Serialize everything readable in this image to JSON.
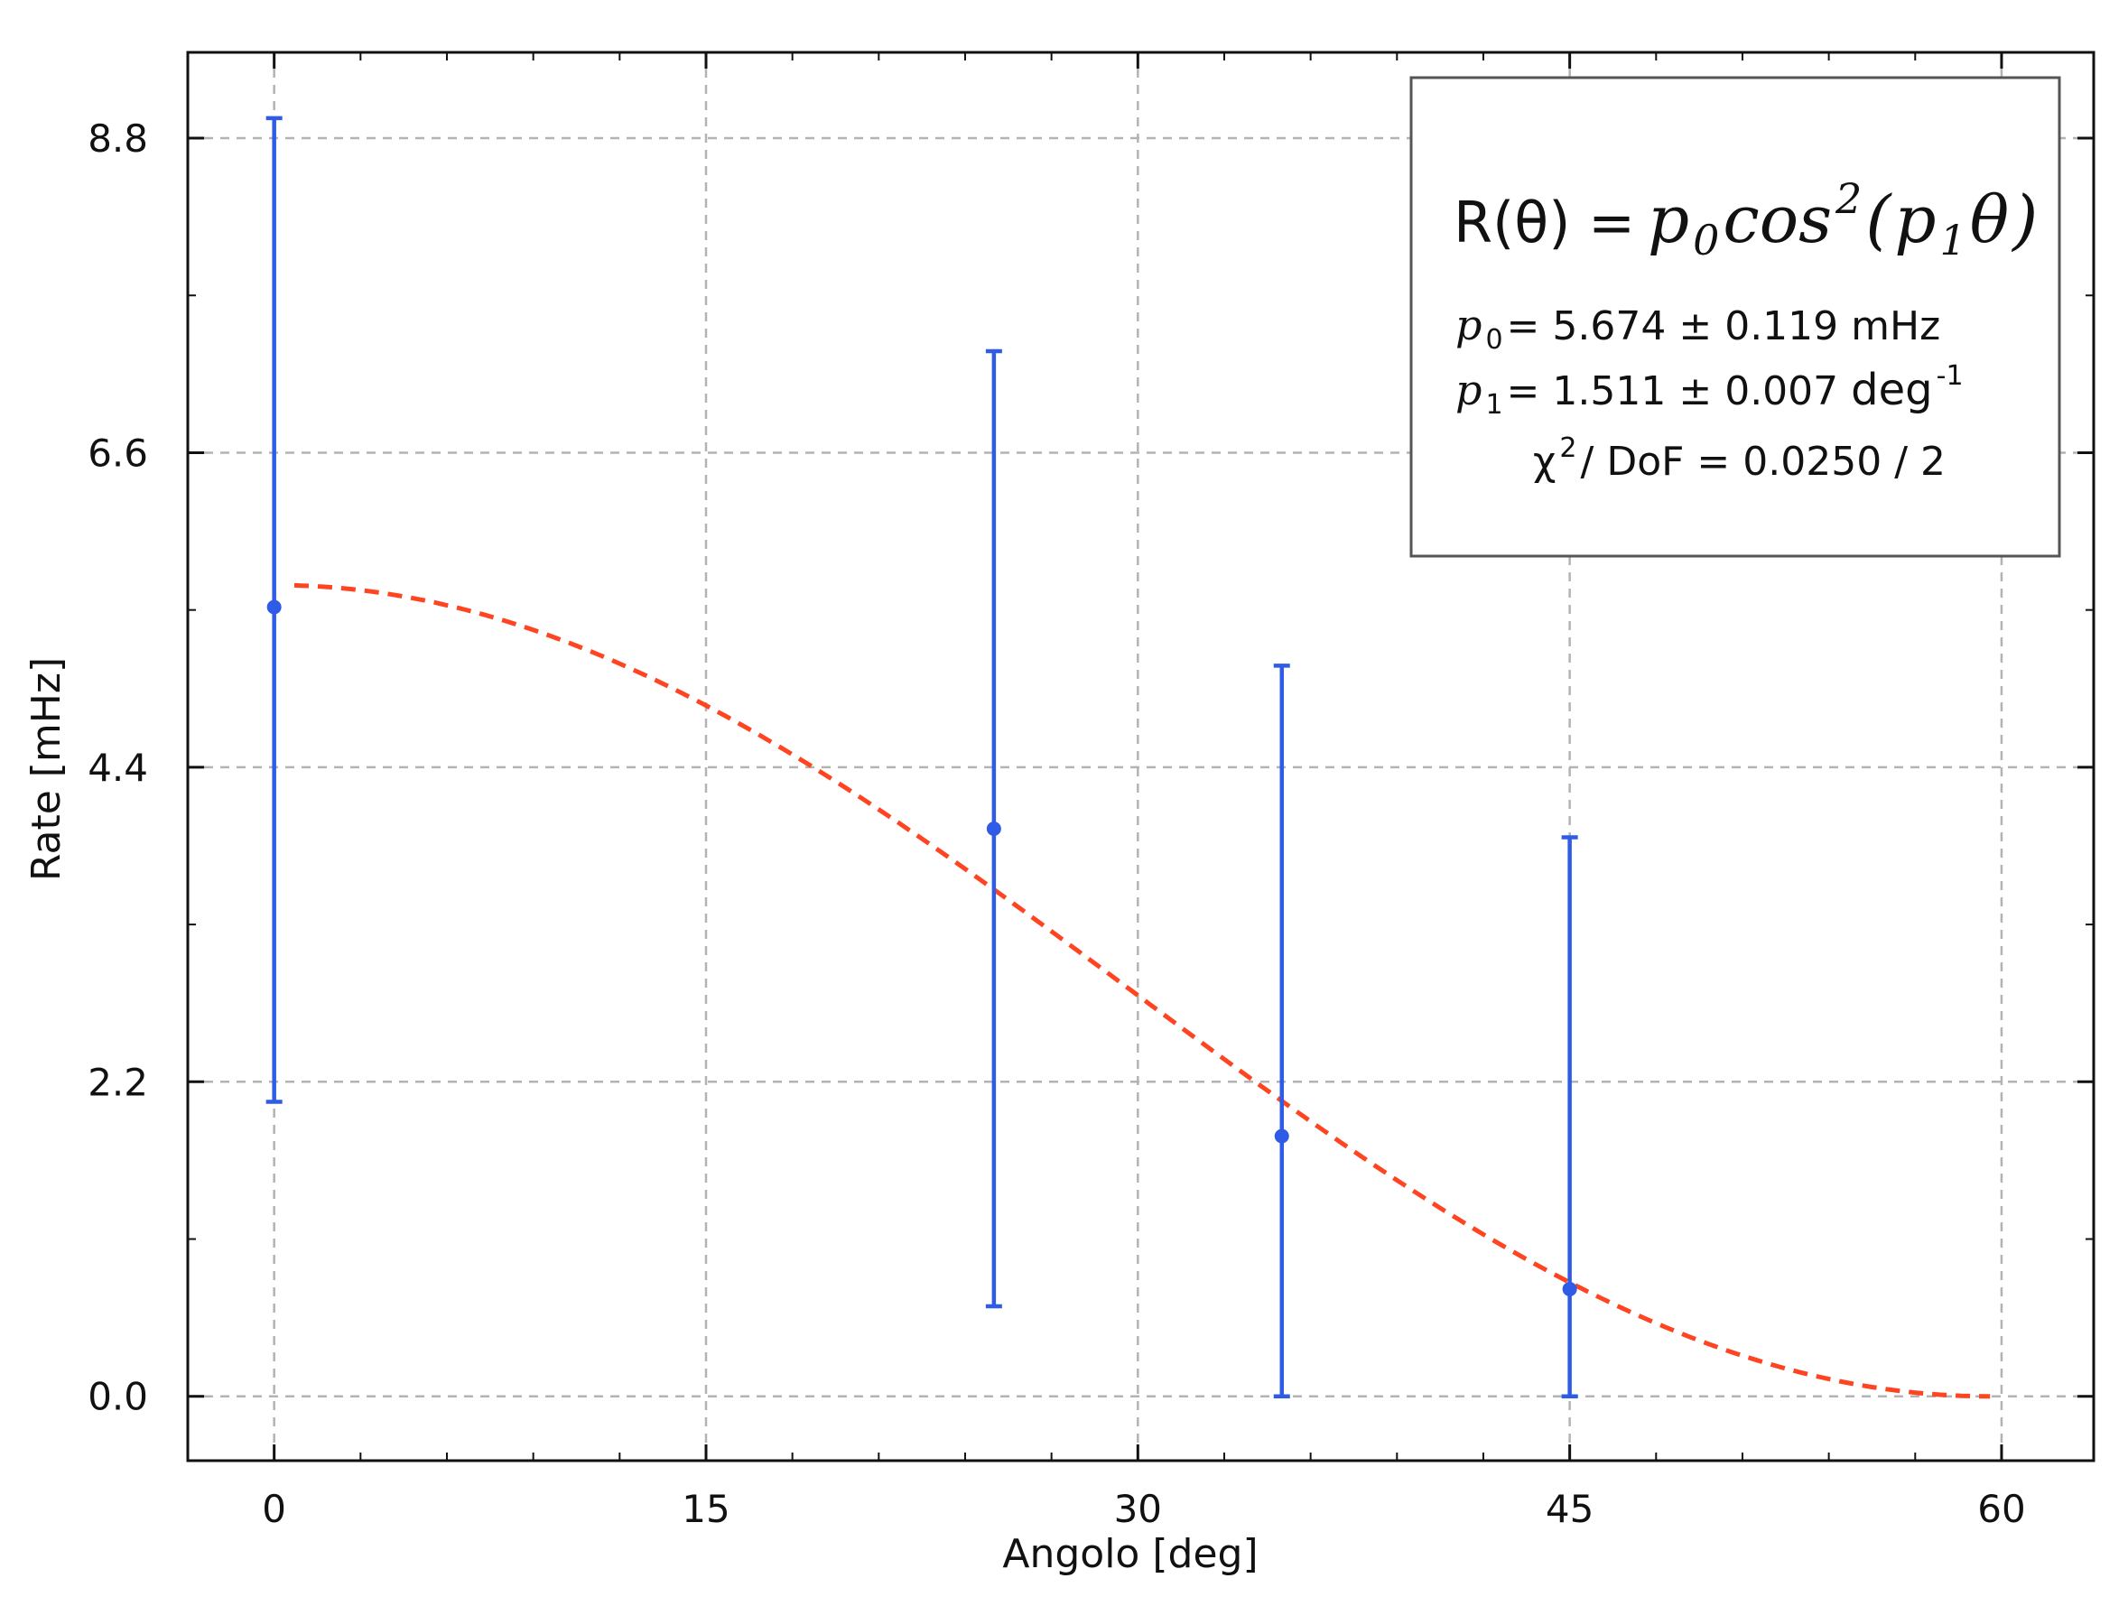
{
  "colors": {
    "data": "#2f5ce6",
    "fit": "#ff4422",
    "grid": "#b3b3b3",
    "frame": "#111111",
    "legend_border": "#555555"
  },
  "legend": {
    "formula": {
      "lhs": "R(θ) =",
      "p": "p",
      "p_sub": "0",
      "cos": "cos",
      "cos_sup": "2",
      "open": "(",
      "inner_p": "p",
      "inner_sub": "1",
      "theta": "θ",
      "close": ")"
    },
    "p0": {
      "sym": "p",
      "sub": "0",
      "text": " = 5.674 ± 0.119 mHz"
    },
    "p1": {
      "sym": "p",
      "sub": "1",
      "text": " = 1.511 ± 0.007 ",
      "unit": "deg",
      "unit_sup": "-1"
    },
    "chi": {
      "sym": "χ",
      "sup": "2",
      "text": " / DoF = 0.0250 / 2"
    }
  },
  "chart_data": {
    "type": "scatter",
    "xlabel": "Angolo [deg]",
    "ylabel": "Rate [mHz]",
    "xlim": [
      -3,
      63.2
    ],
    "ylim": [
      -0.45,
      9.4
    ],
    "x_ticks": [
      0,
      15,
      30,
      45,
      60
    ],
    "x_tick_labels": [
      "0",
      "15",
      "30",
      "45",
      "60"
    ],
    "y_ticks": [
      0.0,
      2.2,
      4.4,
      6.6,
      8.8
    ],
    "y_tick_labels": [
      "0.0",
      "2.2",
      "4.4",
      "6.6",
      "8.8"
    ],
    "x_minor_ticks": [
      3,
      6,
      9,
      12,
      18,
      21,
      24,
      27,
      33,
      36,
      39,
      42,
      48,
      51,
      54,
      57
    ],
    "y_minor_ticks": [
      1.1,
      3.3,
      5.5,
      7.7
    ],
    "grid": true,
    "legend_position": "top-right",
    "series": [
      {
        "kind": "errorbar",
        "x": [
          0,
          25,
          35,
          45
        ],
        "y": [
          5.52,
          3.97,
          1.82,
          0.75
        ],
        "yerr_low": [
          2.06,
          0.63,
          0.0,
          0.0
        ],
        "yerr_high": [
          8.94,
          7.31,
          5.11,
          3.91
        ]
      },
      {
        "kind": "fit",
        "function": "p0*cos^2(p1*theta)",
        "p0": 5.674,
        "p1": 1.511,
        "x_range": [
          0.7,
          59.6
        ]
      }
    ]
  }
}
